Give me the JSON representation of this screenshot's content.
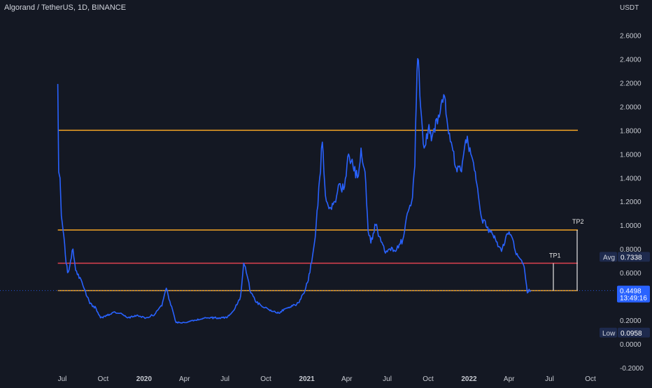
{
  "header": {
    "title": "Algorand / TetherUS, 1D, BINANCE",
    "unit": "USDT"
  },
  "colors": {
    "background": "#141823",
    "price_line": "#2962ff",
    "level_orange": "#f5a524",
    "level_red": "#e0424f",
    "tp_line": "#e6e6e6",
    "tag_blue": "#2962ff",
    "tag_navy": "#1e2a4d"
  },
  "annotations": {
    "tp1": "TP1",
    "tp2": "TP2",
    "avg_label": "Avg",
    "avg_value": "0.7338",
    "low_label": "Low",
    "low_value": "0.0958",
    "last_price": "0.4498",
    "countdown": "13:49:16"
  },
  "chart_data": {
    "type": "line",
    "title": "Algorand / TetherUS, 1D, BINANCE",
    "ylabel": "USDT",
    "ylim": [
      -0.2,
      2.7
    ],
    "y_ticks": [
      "2.6000",
      "2.4000",
      "2.2000",
      "2.0000",
      "1.8000",
      "1.6000",
      "1.4000",
      "1.2000",
      "1.0000",
      "0.8000",
      "0.6000",
      "0.4000",
      "0.2000",
      "0.0000",
      "-0.2000"
    ],
    "x_ticks": [
      {
        "date": "2019-07",
        "label": "Jul"
      },
      {
        "date": "2019-10",
        "label": "Oct"
      },
      {
        "date": "2020-01",
        "label": "2020",
        "bold": true
      },
      {
        "date": "2020-04",
        "label": "Apr"
      },
      {
        "date": "2020-07",
        "label": "Jul"
      },
      {
        "date": "2020-10",
        "label": "Oct"
      },
      {
        "date": "2021-01",
        "label": "2021",
        "bold": true
      },
      {
        "date": "2021-04",
        "label": "Apr"
      },
      {
        "date": "2021-07",
        "label": "Jul"
      },
      {
        "date": "2021-10",
        "label": "Oct"
      },
      {
        "date": "2022-01",
        "label": "2022",
        "bold": true
      },
      {
        "date": "2022-04",
        "label": "Apr"
      },
      {
        "date": "2022-07",
        "label": "Jul"
      },
      {
        "date": "2022-10",
        "label": "Oct"
      }
    ],
    "horizontal_levels": [
      {
        "value": 1.8,
        "color": "orange"
      },
      {
        "value": 0.96,
        "color": "orange"
      },
      {
        "value": 0.68,
        "color": "red"
      },
      {
        "value": 0.45,
        "color": "orange"
      }
    ],
    "series": [
      {
        "points": [
          [
            "2019-06-21",
            2.19
          ],
          [
            "2019-06-23",
            1.45
          ],
          [
            "2019-06-26",
            1.4
          ],
          [
            "2019-06-29",
            1.08
          ],
          [
            "2019-07-03",
            0.95
          ],
          [
            "2019-07-08",
            0.75
          ],
          [
            "2019-07-13",
            0.6
          ],
          [
            "2019-07-18",
            0.66
          ],
          [
            "2019-07-25",
            0.8
          ],
          [
            "2019-07-31",
            0.62
          ],
          [
            "2019-08-10",
            0.56
          ],
          [
            "2019-08-20",
            0.46
          ],
          [
            "2019-09-01",
            0.34
          ],
          [
            "2019-09-15",
            0.3
          ],
          [
            "2019-09-25",
            0.22
          ],
          [
            "2019-10-10",
            0.24
          ],
          [
            "2019-10-25",
            0.27
          ],
          [
            "2019-11-10",
            0.26
          ],
          [
            "2019-11-25",
            0.22
          ],
          [
            "2019-12-15",
            0.24
          ],
          [
            "2020-01-05",
            0.22
          ],
          [
            "2020-01-25",
            0.25
          ],
          [
            "2020-02-10",
            0.32
          ],
          [
            "2020-02-20",
            0.47
          ],
          [
            "2020-02-28",
            0.36
          ],
          [
            "2020-03-13",
            0.18
          ],
          [
            "2020-04-01",
            0.18
          ],
          [
            "2020-04-25",
            0.2
          ],
          [
            "2020-05-20",
            0.22
          ],
          [
            "2020-06-15",
            0.22
          ],
          [
            "2020-07-05",
            0.22
          ],
          [
            "2020-07-20",
            0.28
          ],
          [
            "2020-08-05",
            0.4
          ],
          [
            "2020-08-12",
            0.68
          ],
          [
            "2020-08-18",
            0.6
          ],
          [
            "2020-08-28",
            0.43
          ],
          [
            "2020-09-10",
            0.35
          ],
          [
            "2020-09-25",
            0.31
          ],
          [
            "2020-10-10",
            0.28
          ],
          [
            "2020-10-30",
            0.26
          ],
          [
            "2020-11-15",
            0.3
          ],
          [
            "2020-11-30",
            0.32
          ],
          [
            "2020-12-15",
            0.35
          ],
          [
            "2020-12-28",
            0.45
          ],
          [
            "2021-01-08",
            0.6
          ],
          [
            "2021-01-20",
            0.9
          ],
          [
            "2021-01-30",
            1.4
          ],
          [
            "2021-02-05",
            1.7
          ],
          [
            "2021-02-12",
            1.25
          ],
          [
            "2021-02-22",
            1.15
          ],
          [
            "2021-03-05",
            1.2
          ],
          [
            "2021-03-15",
            1.35
          ],
          [
            "2021-03-25",
            1.3
          ],
          [
            "2021-04-05",
            1.6
          ],
          [
            "2021-04-15",
            1.5
          ],
          [
            "2021-04-25",
            1.4
          ],
          [
            "2021-05-03",
            1.65
          ],
          [
            "2021-05-12",
            1.45
          ],
          [
            "2021-05-19",
            0.95
          ],
          [
            "2021-05-25",
            0.85
          ],
          [
            "2021-06-05",
            1.0
          ],
          [
            "2021-06-15",
            0.9
          ],
          [
            "2021-06-25",
            0.78
          ],
          [
            "2021-07-05",
            0.8
          ],
          [
            "2021-07-20",
            0.78
          ],
          [
            "2021-08-05",
            0.88
          ],
          [
            "2021-08-15",
            1.1
          ],
          [
            "2021-08-25",
            1.2
          ],
          [
            "2021-09-01",
            1.5
          ],
          [
            "2021-09-06",
            2.3
          ],
          [
            "2021-09-09",
            2.39
          ],
          [
            "2021-09-14",
            2.0
          ],
          [
            "2021-09-22",
            1.65
          ],
          [
            "2021-10-01",
            1.8
          ],
          [
            "2021-10-10",
            1.75
          ],
          [
            "2021-10-20",
            1.9
          ],
          [
            "2021-10-28",
            1.95
          ],
          [
            "2021-11-05",
            2.1
          ],
          [
            "2021-11-12",
            1.9
          ],
          [
            "2021-11-22",
            1.7
          ],
          [
            "2021-12-05",
            1.45
          ],
          [
            "2021-12-15",
            1.45
          ],
          [
            "2021-12-28",
            1.75
          ],
          [
            "2022-01-05",
            1.6
          ],
          [
            "2022-01-15",
            1.45
          ],
          [
            "2022-01-22",
            1.25
          ],
          [
            "2022-01-30",
            1.05
          ],
          [
            "2022-02-10",
            0.98
          ],
          [
            "2022-02-22",
            0.93
          ],
          [
            "2022-03-05",
            0.86
          ],
          [
            "2022-03-15",
            0.78
          ],
          [
            "2022-03-28",
            0.93
          ],
          [
            "2022-04-05",
            0.92
          ],
          [
            "2022-04-15",
            0.78
          ],
          [
            "2022-04-25",
            0.72
          ],
          [
            "2022-05-05",
            0.65
          ],
          [
            "2022-05-10",
            0.5
          ],
          [
            "2022-05-12",
            0.43
          ],
          [
            "2022-05-16",
            0.46
          ],
          [
            "2022-05-20",
            0.45
          ]
        ]
      }
    ]
  }
}
